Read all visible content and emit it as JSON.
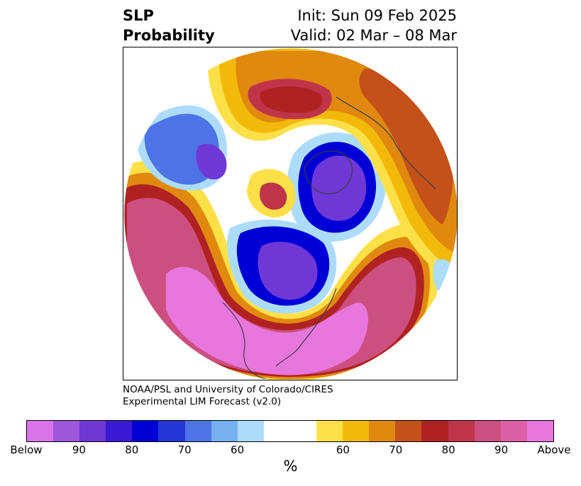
{
  "title": {
    "left_line1": "SLP",
    "left_line2": "Probability",
    "init": "Init: Sun 09 Feb 2025",
    "valid": "Valid: 02 Mar – 08 Mar"
  },
  "credit": {
    "line1": "NOAA/PSL and University of Colorado/CIRES",
    "line2": "Experimental LIM Forecast (v2.0)"
  },
  "colorbar": {
    "unit": "%",
    "colors": [
      "#d974e8",
      "#9d56dc",
      "#6f37d6",
      "#3a1ad6",
      "#0000d6",
      "#2436d6",
      "#4c74e6",
      "#76b0f0",
      "#acdcfa",
      "#ffffff",
      "#fde047",
      "#f3b90a",
      "#e0890e",
      "#c4501a",
      "#b02222",
      "#c0344a",
      "#cd4f7f",
      "#dc5fa8",
      "#e777dd"
    ],
    "ticks": [
      "Below",
      "90",
      "80",
      "70",
      "60",
      "60",
      "70",
      "80",
      "90",
      "Above"
    ]
  },
  "map": {
    "colors": {
      "below_strong": "#6f37d6",
      "below_mid": "#0000d6",
      "below_light": "#4c74e6",
      "below_pale": "#acdcfa",
      "above_pale": "#fde047",
      "above_light": "#f3b90a",
      "above_mid": "#e0890e",
      "above_orange": "#c4501a",
      "above_red": "#b02222",
      "above_rose": "#c0344a",
      "above_pink": "#cd4f7f",
      "above_magenta": "#e777dd",
      "coast": "#3d3d3d"
    }
  }
}
